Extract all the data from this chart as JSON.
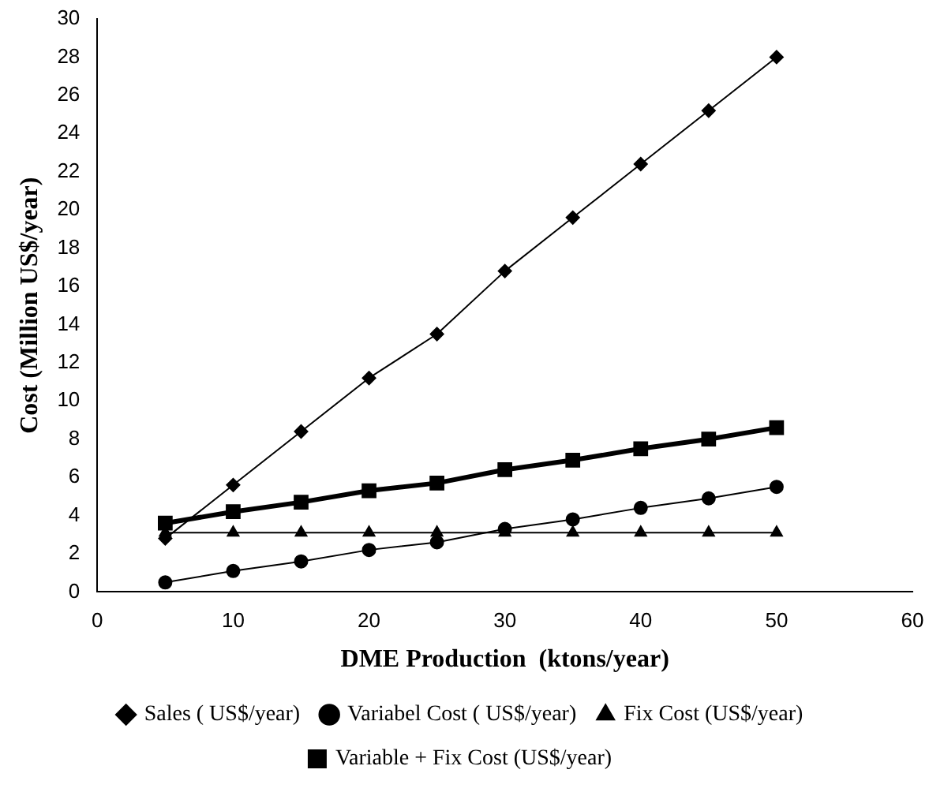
{
  "chart_data": {
    "type": "line",
    "xlabel": "DME Production  (ktons/year)",
    "ylabel": "Cost (Million US$/year)",
    "x": [
      5,
      10,
      15,
      20,
      25,
      30,
      35,
      40,
      45,
      50
    ],
    "series": [
      {
        "name": "Sales ( US$/year)",
        "color": "#000000",
        "marker": "diamond",
        "values": [
          2.8,
          5.6,
          8.4,
          11.2,
          13.5,
          16.8,
          19.6,
          22.4,
          25.2,
          28
        ]
      },
      {
        "name": "Variabel Cost ( US$/year)",
        "color": "#000000",
        "marker": "circle",
        "values": [
          0.5,
          1.1,
          1.6,
          2.2,
          2.6,
          3.3,
          3.8,
          4.4,
          4.9,
          5.5
        ]
      },
      {
        "name": "Fix Cost (US$/year)",
        "color": "#000000",
        "marker": "triangle",
        "values": [
          3.1,
          3.1,
          3.1,
          3.1,
          3.1,
          3.1,
          3.1,
          3.1,
          3.1,
          3.1
        ]
      },
      {
        "name": "Variable + Fix Cost (US$/year)",
        "color": "#000000",
        "marker": "square",
        "values": [
          3.6,
          4.2,
          4.7,
          5.3,
          5.7,
          6.4,
          6.9,
          7.5,
          8,
          8.6
        ]
      }
    ],
    "xlim": [
      0,
      60
    ],
    "xticks": [
      0,
      10,
      20,
      30,
      40,
      50,
      60
    ],
    "ylim": [
      0,
      30
    ],
    "yticks": [
      0,
      2,
      4,
      6,
      8,
      10,
      12,
      14,
      16,
      18,
      20,
      22,
      24,
      26,
      28,
      30
    ],
    "grid": false,
    "legend": "bottom",
    "line_style": "solid"
  }
}
